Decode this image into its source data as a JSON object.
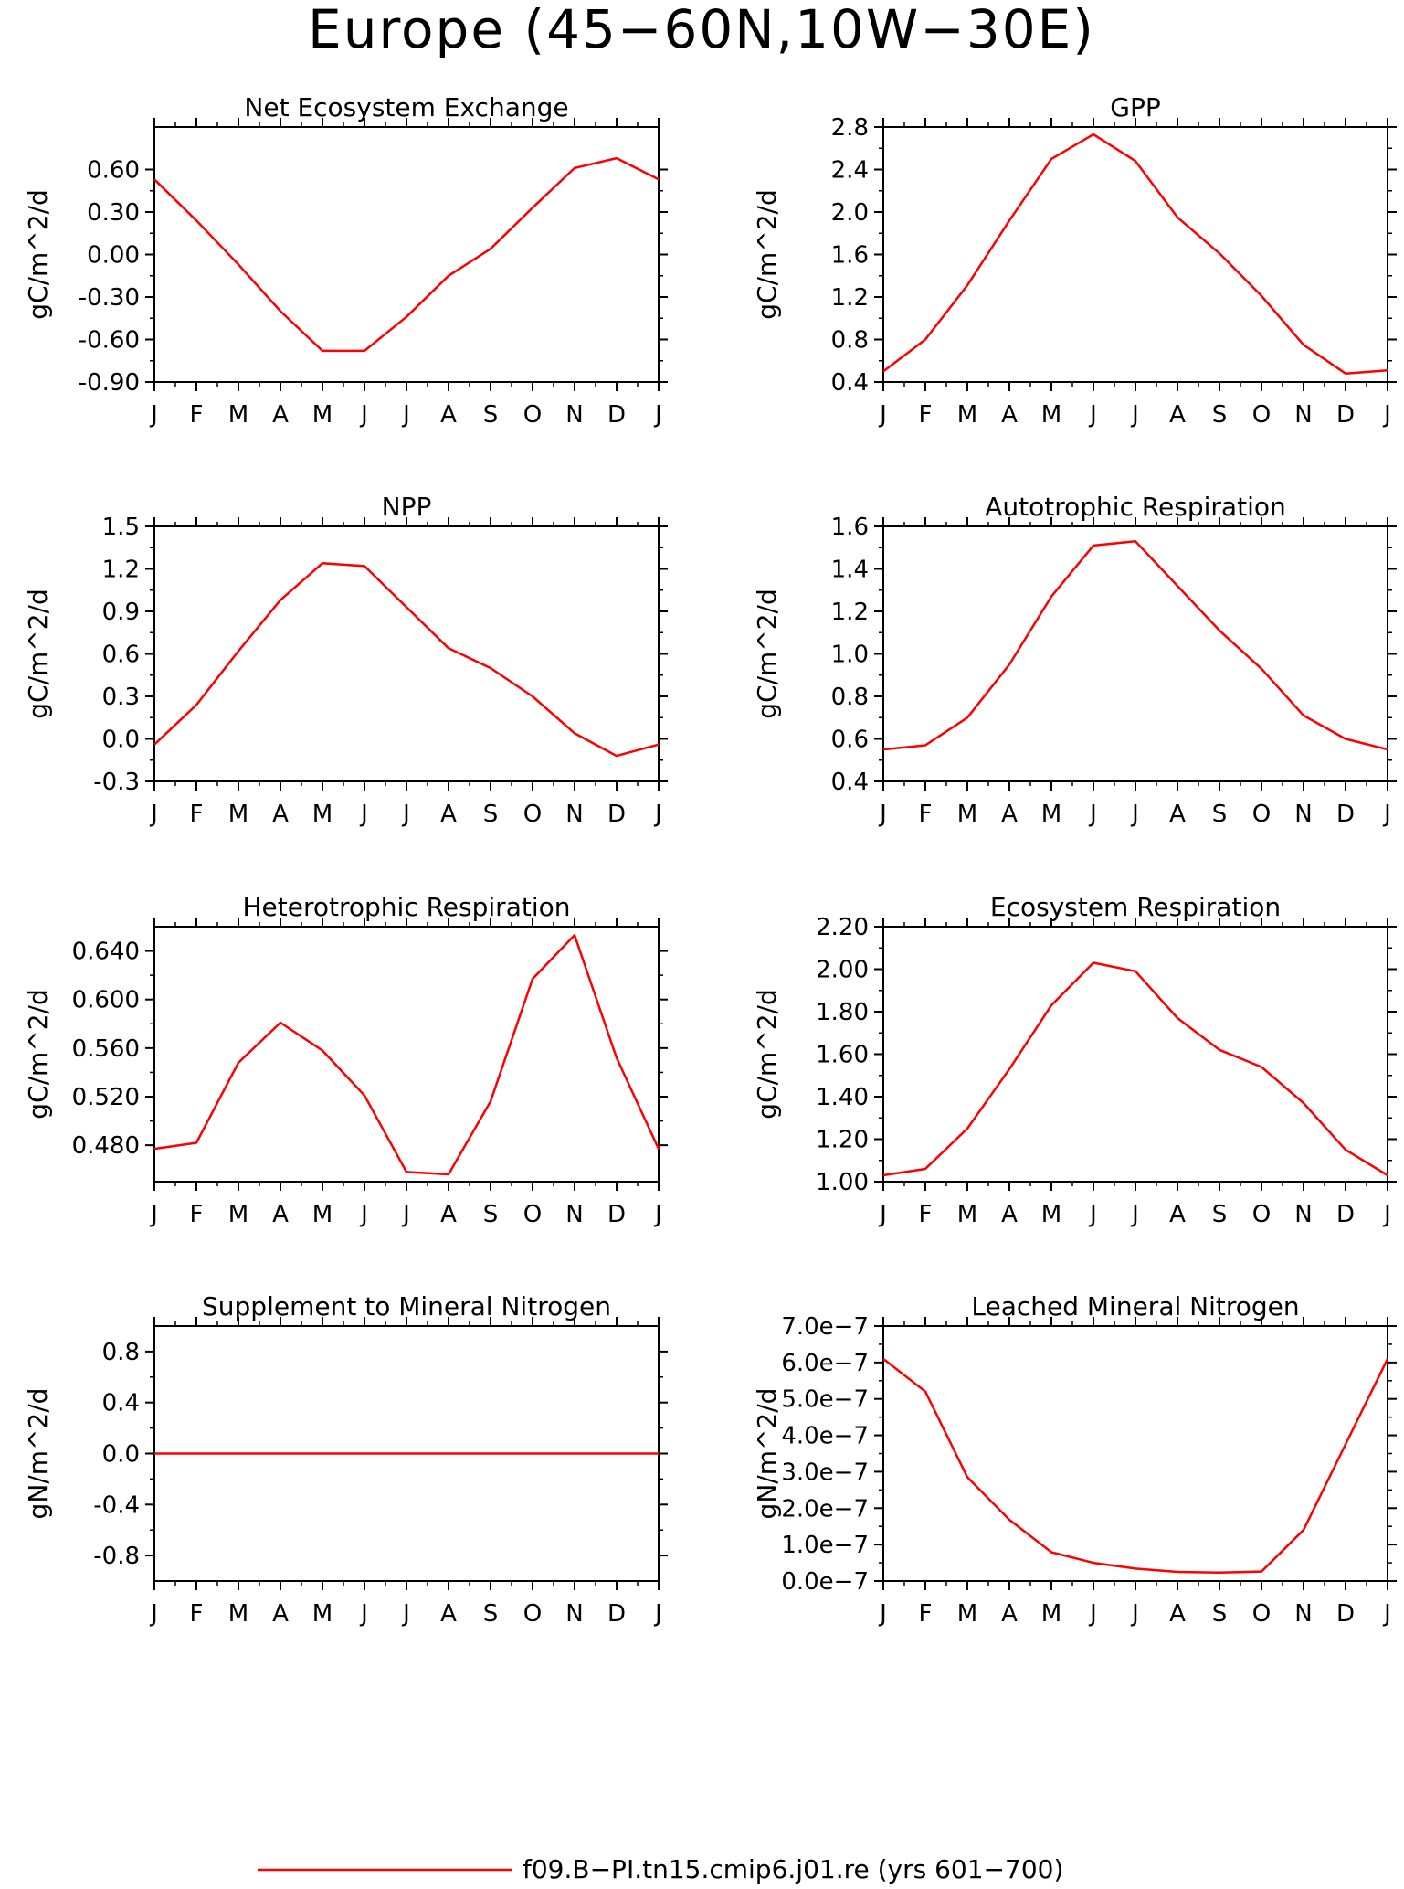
{
  "page_title": "Europe (45−60N,10W−30E)",
  "legend": {
    "label": "f09.B−PI.tn15.cmip6.j01.re (yrs 601−700)",
    "color": "#ff0000"
  },
  "months": [
    "J",
    "F",
    "M",
    "A",
    "M",
    "J",
    "J",
    "A",
    "S",
    "O",
    "N",
    "D",
    "J"
  ],
  "chart_data": [
    {
      "type": "line",
      "title": "Net Ecosystem Exchange",
      "ylabel": "gC/m^2/d",
      "ylim": [
        -0.9,
        0.9
      ],
      "yticks": [
        -0.9,
        -0.6,
        -0.3,
        0.0,
        0.3,
        0.6
      ],
      "ytick_labels": [
        "-0.90",
        "-0.60",
        "-0.30",
        "0.00",
        "0.30",
        "0.60"
      ],
      "x": [
        "J",
        "F",
        "M",
        "A",
        "M",
        "J",
        "J",
        "A",
        "S",
        "O",
        "N",
        "D",
        "J"
      ],
      "series": [
        {
          "name": "f09.B−PI.tn15.cmip6.j01.re (yrs 601−700)",
          "values": [
            0.53,
            0.24,
            -0.07,
            -0.4,
            -0.68,
            -0.68,
            -0.44,
            -0.15,
            0.04,
            0.33,
            0.61,
            0.68,
            0.53
          ]
        }
      ]
    },
    {
      "type": "line",
      "title": "GPP",
      "ylabel": "gC/m^2/d",
      "ylim": [
        0.4,
        2.8
      ],
      "yticks": [
        0.4,
        0.8,
        1.2,
        1.6,
        2.0,
        2.4,
        2.8
      ],
      "ytick_labels": [
        "0.4",
        "0.8",
        "1.2",
        "1.6",
        "2.0",
        "2.4",
        "2.8"
      ],
      "x": [
        "J",
        "F",
        "M",
        "A",
        "M",
        "J",
        "J",
        "A",
        "S",
        "O",
        "N",
        "D",
        "J"
      ],
      "series": [
        {
          "name": "f09.B−PI.tn15.cmip6.j01.re (yrs 601−700)",
          "values": [
            0.5,
            0.8,
            1.31,
            1.92,
            2.5,
            2.73,
            2.48,
            1.95,
            1.61,
            1.21,
            0.75,
            0.48,
            0.51
          ]
        }
      ]
    },
    {
      "type": "line",
      "title": "NPP",
      "ylabel": "gC/m^2/d",
      "ylim": [
        -0.3,
        1.5
      ],
      "yticks": [
        -0.3,
        0.0,
        0.3,
        0.6,
        0.9,
        1.2,
        1.5
      ],
      "ytick_labels": [
        "-0.3",
        "0.0",
        "0.3",
        "0.6",
        "0.9",
        "1.2",
        "1.5"
      ],
      "x": [
        "J",
        "F",
        "M",
        "A",
        "M",
        "J",
        "J",
        "A",
        "S",
        "O",
        "N",
        "D",
        "J"
      ],
      "series": [
        {
          "name": "f09.B−PI.tn15.cmip6.j01.re (yrs 601−700)",
          "values": [
            -0.04,
            0.24,
            0.62,
            0.98,
            1.24,
            1.22,
            0.93,
            0.64,
            0.5,
            0.3,
            0.04,
            -0.12,
            -0.04
          ]
        }
      ]
    },
    {
      "type": "line",
      "title": "Autotrophic Respiration",
      "ylabel": "gC/m^2/d",
      "ylim": [
        0.4,
        1.6
      ],
      "yticks": [
        0.4,
        0.6,
        0.8,
        1.0,
        1.2,
        1.4,
        1.6
      ],
      "ytick_labels": [
        "0.4",
        "0.6",
        "0.8",
        "1.0",
        "1.2",
        "1.4",
        "1.6"
      ],
      "x": [
        "J",
        "F",
        "M",
        "A",
        "M",
        "J",
        "J",
        "A",
        "S",
        "O",
        "N",
        "D",
        "J"
      ],
      "series": [
        {
          "name": "f09.B−PI.tn15.cmip6.j01.re (yrs 601−700)",
          "values": [
            0.55,
            0.57,
            0.7,
            0.95,
            1.27,
            1.51,
            1.53,
            1.32,
            1.11,
            0.93,
            0.71,
            0.6,
            0.55
          ]
        }
      ]
    },
    {
      "type": "line",
      "title": "Heterotrophic Respiration",
      "ylabel": "gC/m^2/d",
      "ylim": [
        0.45,
        0.66
      ],
      "yticks": [
        0.48,
        0.52,
        0.56,
        0.6,
        0.64
      ],
      "ytick_labels": [
        "0.480",
        "0.520",
        "0.560",
        "0.600",
        "0.640"
      ],
      "x": [
        "J",
        "F",
        "M",
        "A",
        "M",
        "J",
        "J",
        "A",
        "S",
        "O",
        "N",
        "D",
        "J"
      ],
      "series": [
        {
          "name": "f09.B−PI.tn15.cmip6.j01.re (yrs 601−700)",
          "values": [
            0.477,
            0.482,
            0.548,
            0.581,
            0.558,
            0.521,
            0.458,
            0.456,
            0.516,
            0.617,
            0.653,
            0.552,
            0.477
          ]
        }
      ]
    },
    {
      "type": "line",
      "title": "Ecosystem Respiration",
      "ylabel": "gC/m^2/d",
      "ylim": [
        1.0,
        2.2
      ],
      "yticks": [
        1.0,
        1.2,
        1.4,
        1.6,
        1.8,
        2.0,
        2.2
      ],
      "ytick_labels": [
        "1.00",
        "1.20",
        "1.40",
        "1.60",
        "1.80",
        "2.00",
        "2.20"
      ],
      "x": [
        "J",
        "F",
        "M",
        "A",
        "M",
        "J",
        "J",
        "A",
        "S",
        "O",
        "N",
        "D",
        "J"
      ],
      "series": [
        {
          "name": "f09.B−PI.tn15.cmip6.j01.re (yrs 601−700)",
          "values": [
            1.03,
            1.06,
            1.25,
            1.53,
            1.83,
            2.03,
            1.99,
            1.77,
            1.62,
            1.54,
            1.37,
            1.15,
            1.03
          ]
        }
      ]
    },
    {
      "type": "line",
      "title": "Supplement to Mineral Nitrogen",
      "ylabel": "gN/m^2/d",
      "ylim": [
        -1.0,
        1.0
      ],
      "yticks": [
        -0.8,
        -0.4,
        0.0,
        0.4,
        0.8
      ],
      "ytick_labels": [
        "-0.8",
        "-0.4",
        "0.0",
        "0.4",
        "0.8"
      ],
      "x": [
        "J",
        "F",
        "M",
        "A",
        "M",
        "J",
        "J",
        "A",
        "S",
        "O",
        "N",
        "D",
        "J"
      ],
      "series": [
        {
          "name": "f09.B−PI.tn15.cmip6.j01.re (yrs 601−700)",
          "values": [
            0,
            0,
            0,
            0,
            0,
            0,
            0,
            0,
            0,
            0,
            0,
            0,
            0
          ]
        }
      ]
    },
    {
      "type": "line",
      "title": "Leached Mineral Nitrogen",
      "ylabel": "gN/m^2/d",
      "ylim": [
        0.0,
        7e-07
      ],
      "yticks": [
        0.0,
        1e-07,
        2e-07,
        3e-07,
        4e-07,
        5e-07,
        6e-07,
        7e-07
      ],
      "ytick_labels": [
        "0.0e−7",
        "1.0e−7",
        "2.0e−7",
        "3.0e−7",
        "4.0e−7",
        "5.0e−7",
        "6.0e−7",
        "7.0e−7"
      ],
      "x": [
        "J",
        "F",
        "M",
        "A",
        "M",
        "J",
        "J",
        "A",
        "S",
        "O",
        "N",
        "D",
        "J"
      ],
      "series": [
        {
          "name": "f09.B−PI.tn15.cmip6.j01.re (yrs 601−700)",
          "values": [
            6.1e-07,
            5.2e-07,
            2.85e-07,
            1.68e-07,
            7.9e-08,
            5e-08,
            3.4e-08,
            2.5e-08,
            2.3e-08,
            2.6e-08,
            1.4e-07,
            3.75e-07,
            6.1e-07
          ]
        }
      ]
    }
  ]
}
